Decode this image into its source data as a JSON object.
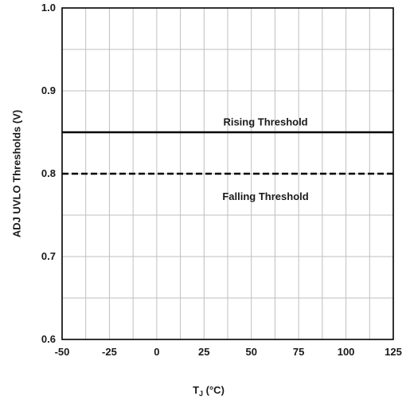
{
  "chart_data": {
    "type": "line",
    "xlabel_main": "T",
    "xlabel_sub": "J",
    "xlabel_unit": " (°C)",
    "ylabel": "ADJ UVLO Thresholds (V)",
    "xlim": [
      -50,
      125
    ],
    "ylim": [
      0.6,
      1.0
    ],
    "x_ticks": [
      -50,
      -25,
      0,
      25,
      50,
      75,
      100,
      125
    ],
    "x_tick_labels": [
      "-50",
      "-25",
      "0",
      "25",
      "50",
      "75",
      "100",
      "125"
    ],
    "x_minor_step": 12.5,
    "y_ticks": [
      0.6,
      0.7,
      0.8,
      0.9,
      1.0
    ],
    "y_tick_labels": [
      "0.6",
      "0.7",
      "0.8",
      "0.9",
      "1.0"
    ],
    "y_minor_step": 0.05,
    "grid": true,
    "series": [
      {
        "name": "Rising Threshold",
        "style": "solid",
        "color": "#000000",
        "x": [
          -50,
          125
        ],
        "y": [
          0.85,
          0.85
        ]
      },
      {
        "name": "Falling Threshold",
        "style": "dashed",
        "color": "#000000",
        "x": [
          -50,
          125
        ],
        "y": [
          0.8,
          0.8
        ]
      }
    ],
    "annotations": [
      {
        "text": "Rising Threshold",
        "x": 57.5,
        "y": 0.862
      },
      {
        "text": "Falling Threshold",
        "x": 57.5,
        "y": 0.772
      }
    ]
  }
}
